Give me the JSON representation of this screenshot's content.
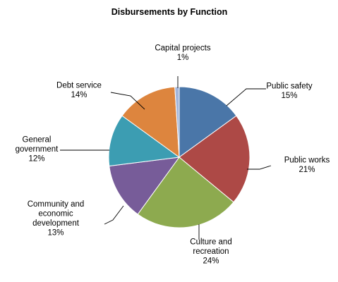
{
  "chart_data": {
    "type": "pie",
    "title": "Disbursements by Function",
    "slices": [
      {
        "name": "Public safety",
        "label_lines": [
          "Public safety"
        ],
        "value": 15,
        "value_label": "15%",
        "color": "#4A76A8"
      },
      {
        "name": "Public works",
        "label_lines": [
          "Public works"
        ],
        "value": 21,
        "value_label": "21%",
        "color": "#AD4946"
      },
      {
        "name": "Culture and recreation",
        "label_lines": [
          "Culture and",
          "recreation"
        ],
        "value": 24,
        "value_label": "24%",
        "color": "#8DAA4F"
      },
      {
        "name": "Community and economic development",
        "label_lines": [
          "Community and",
          "economic",
          "development"
        ],
        "value": 13,
        "value_label": "13%",
        "color": "#775C99"
      },
      {
        "name": "General government",
        "label_lines": [
          "General",
          "government"
        ],
        "value": 12,
        "value_label": "12%",
        "color": "#3C9DB2"
      },
      {
        "name": "Debt service",
        "label_lines": [
          "Debt service"
        ],
        "value": 14,
        "value_label": "14%",
        "color": "#DD853E"
      },
      {
        "name": "Capital projects",
        "label_lines": [
          "Capital projects"
        ],
        "value": 1,
        "value_label": "1%",
        "color": "#A3B6DB"
      }
    ]
  }
}
